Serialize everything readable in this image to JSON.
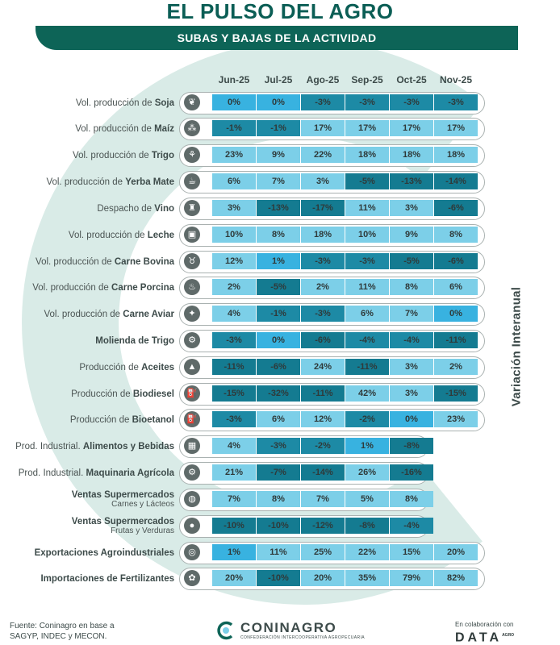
{
  "header": {
    "title": "EL PULSO DEL AGRO",
    "subtitle": "SUBAS Y BAJAS DE LA ACTIVIDAD"
  },
  "side_label": "Variación Interanual",
  "colors": {
    "header_green": "#0d6457",
    "positive_high": "#38b2e0",
    "positive": "#7ccfe8",
    "negative": "#1d8aa5",
    "negative_high": "#147b91",
    "watermark": "#d9ebe7"
  },
  "chart_data": {
    "type": "table",
    "categories": [
      "Jun-25",
      "Jul-25",
      "Ago-25",
      "Sep-25",
      "Oct-25",
      "Nov-25"
    ],
    "rows": [
      {
        "label_pre": "Vol. producción de ",
        "label_bold": "Soja",
        "icon": "soy-leaf-icon",
        "values": [
          "0%",
          "0%",
          "-3%",
          "-3%",
          "-3%",
          "-3%"
        ]
      },
      {
        "label_pre": "Vol. producción de ",
        "label_bold": "Maíz",
        "icon": "corn-icon",
        "values": [
          "-1%",
          "-1%",
          "17%",
          "17%",
          "17%",
          "17%"
        ]
      },
      {
        "label_pre": "Vol. producción de ",
        "label_bold": "Trigo",
        "icon": "wheat-icon",
        "values": [
          "23%",
          "9%",
          "22%",
          "18%",
          "18%",
          "18%"
        ]
      },
      {
        "label_pre": "Vol. producción de ",
        "label_bold": "Yerba Mate",
        "icon": "yerba-mate-icon",
        "values": [
          "6%",
          "7%",
          "3%",
          "-5%",
          "-13%",
          "-14%"
        ]
      },
      {
        "label_pre": "Despacho de ",
        "label_bold": "Vino",
        "icon": "wine-bottle-icon",
        "values": [
          "3%",
          "-13%",
          "-17%",
          "11%",
          "3%",
          "-6%"
        ]
      },
      {
        "label_pre": "Vol. producción de ",
        "label_bold": "Leche",
        "icon": "milk-carton-icon",
        "values": [
          "10%",
          "8%",
          "18%",
          "10%",
          "9%",
          "8%"
        ]
      },
      {
        "label_pre": "Vol. producción de ",
        "label_bold": "Carne Bovina",
        "icon": "cow-icon",
        "values": [
          "12%",
          "1%",
          "-3%",
          "-3%",
          "-5%",
          "-6%"
        ]
      },
      {
        "label_pre": "Vol. producción de ",
        "label_bold": "Carne Porcina",
        "icon": "pig-icon",
        "values": [
          "2%",
          "-5%",
          "2%",
          "11%",
          "8%",
          "6%"
        ]
      },
      {
        "label_pre": "Vol. producción de ",
        "label_bold": "Carne Aviar",
        "icon": "chicken-icon",
        "values": [
          "4%",
          "-1%",
          "-3%",
          "6%",
          "7%",
          "0%"
        ]
      },
      {
        "label_pre": "",
        "label_bold": "Molienda de Trigo",
        "icon": "mill-icon",
        "values": [
          "-3%",
          "0%",
          "-6%",
          "-4%",
          "-4%",
          "-11%"
        ]
      },
      {
        "label_pre": "Producción de ",
        "label_bold": "Aceites",
        "icon": "oil-bottle-icon",
        "values": [
          "-11%",
          "-6%",
          "24%",
          "-11%",
          "3%",
          "2%"
        ]
      },
      {
        "label_pre": "Producción de ",
        "label_bold": "Biodiesel",
        "icon": "biodiesel-canister-icon",
        "values": [
          "-15%",
          "-32%",
          "-11%",
          "42%",
          "3%",
          "-15%"
        ]
      },
      {
        "label_pre": "Producción de ",
        "label_bold": "Bioetanol",
        "icon": "bioethanol-pump-icon",
        "values": [
          "-3%",
          "6%",
          "12%",
          "-2%",
          "0%",
          "23%"
        ]
      },
      {
        "label_pre": "Prod. Industrial. ",
        "label_bold": "Alimentos y Bebidas",
        "icon": "factory-icon",
        "values": [
          "4%",
          "-3%",
          "-2%",
          "1%",
          "-8%"
        ]
      },
      {
        "label_pre": "Prod. Industrial. ",
        "label_bold": "Maquinaria Agrícola",
        "icon": "tractor-icon",
        "values": [
          "21%",
          "-7%",
          "-14%",
          "26%",
          "-16%"
        ]
      },
      {
        "label_pre": "",
        "label_bold": "Ventas Supermercados",
        "label_sub": "Carnes y Lácteos",
        "icon": "meat-icon",
        "values": [
          "7%",
          "8%",
          "7%",
          "5%",
          "8%"
        ]
      },
      {
        "label_pre": "",
        "label_bold": "Ventas Supermercados",
        "label_sub": "Frutas y Verduras",
        "icon": "apple-icon",
        "values": [
          "-10%",
          "-10%",
          "-12%",
          "-8%",
          "-4%"
        ]
      },
      {
        "label_pre": "",
        "label_bold": "Exportaciones Agroindustriales",
        "icon": "globe-icon",
        "values": [
          "1%",
          "11%",
          "25%",
          "22%",
          "15%",
          "20%"
        ]
      },
      {
        "label_pre": "",
        "label_bold": "Importaciones de Fertilizantes",
        "icon": "fertilizer-bag-icon",
        "values": [
          "20%",
          "-10%",
          "20%",
          "35%",
          "79%",
          "82%"
        ]
      }
    ]
  },
  "footer": {
    "source_line1": "Fuente: Coninagro en base a",
    "source_line2": "SAGYP, INDEC y MECON.",
    "logo_name": "CONINAGRO",
    "logo_sub": "CONFEDERACIÓN INTERCOOPERATIVA AGROPECUARIA",
    "collab_text": "En colaboración con",
    "collab_brand": "DATA",
    "collab_brand_small": "AGRO"
  }
}
